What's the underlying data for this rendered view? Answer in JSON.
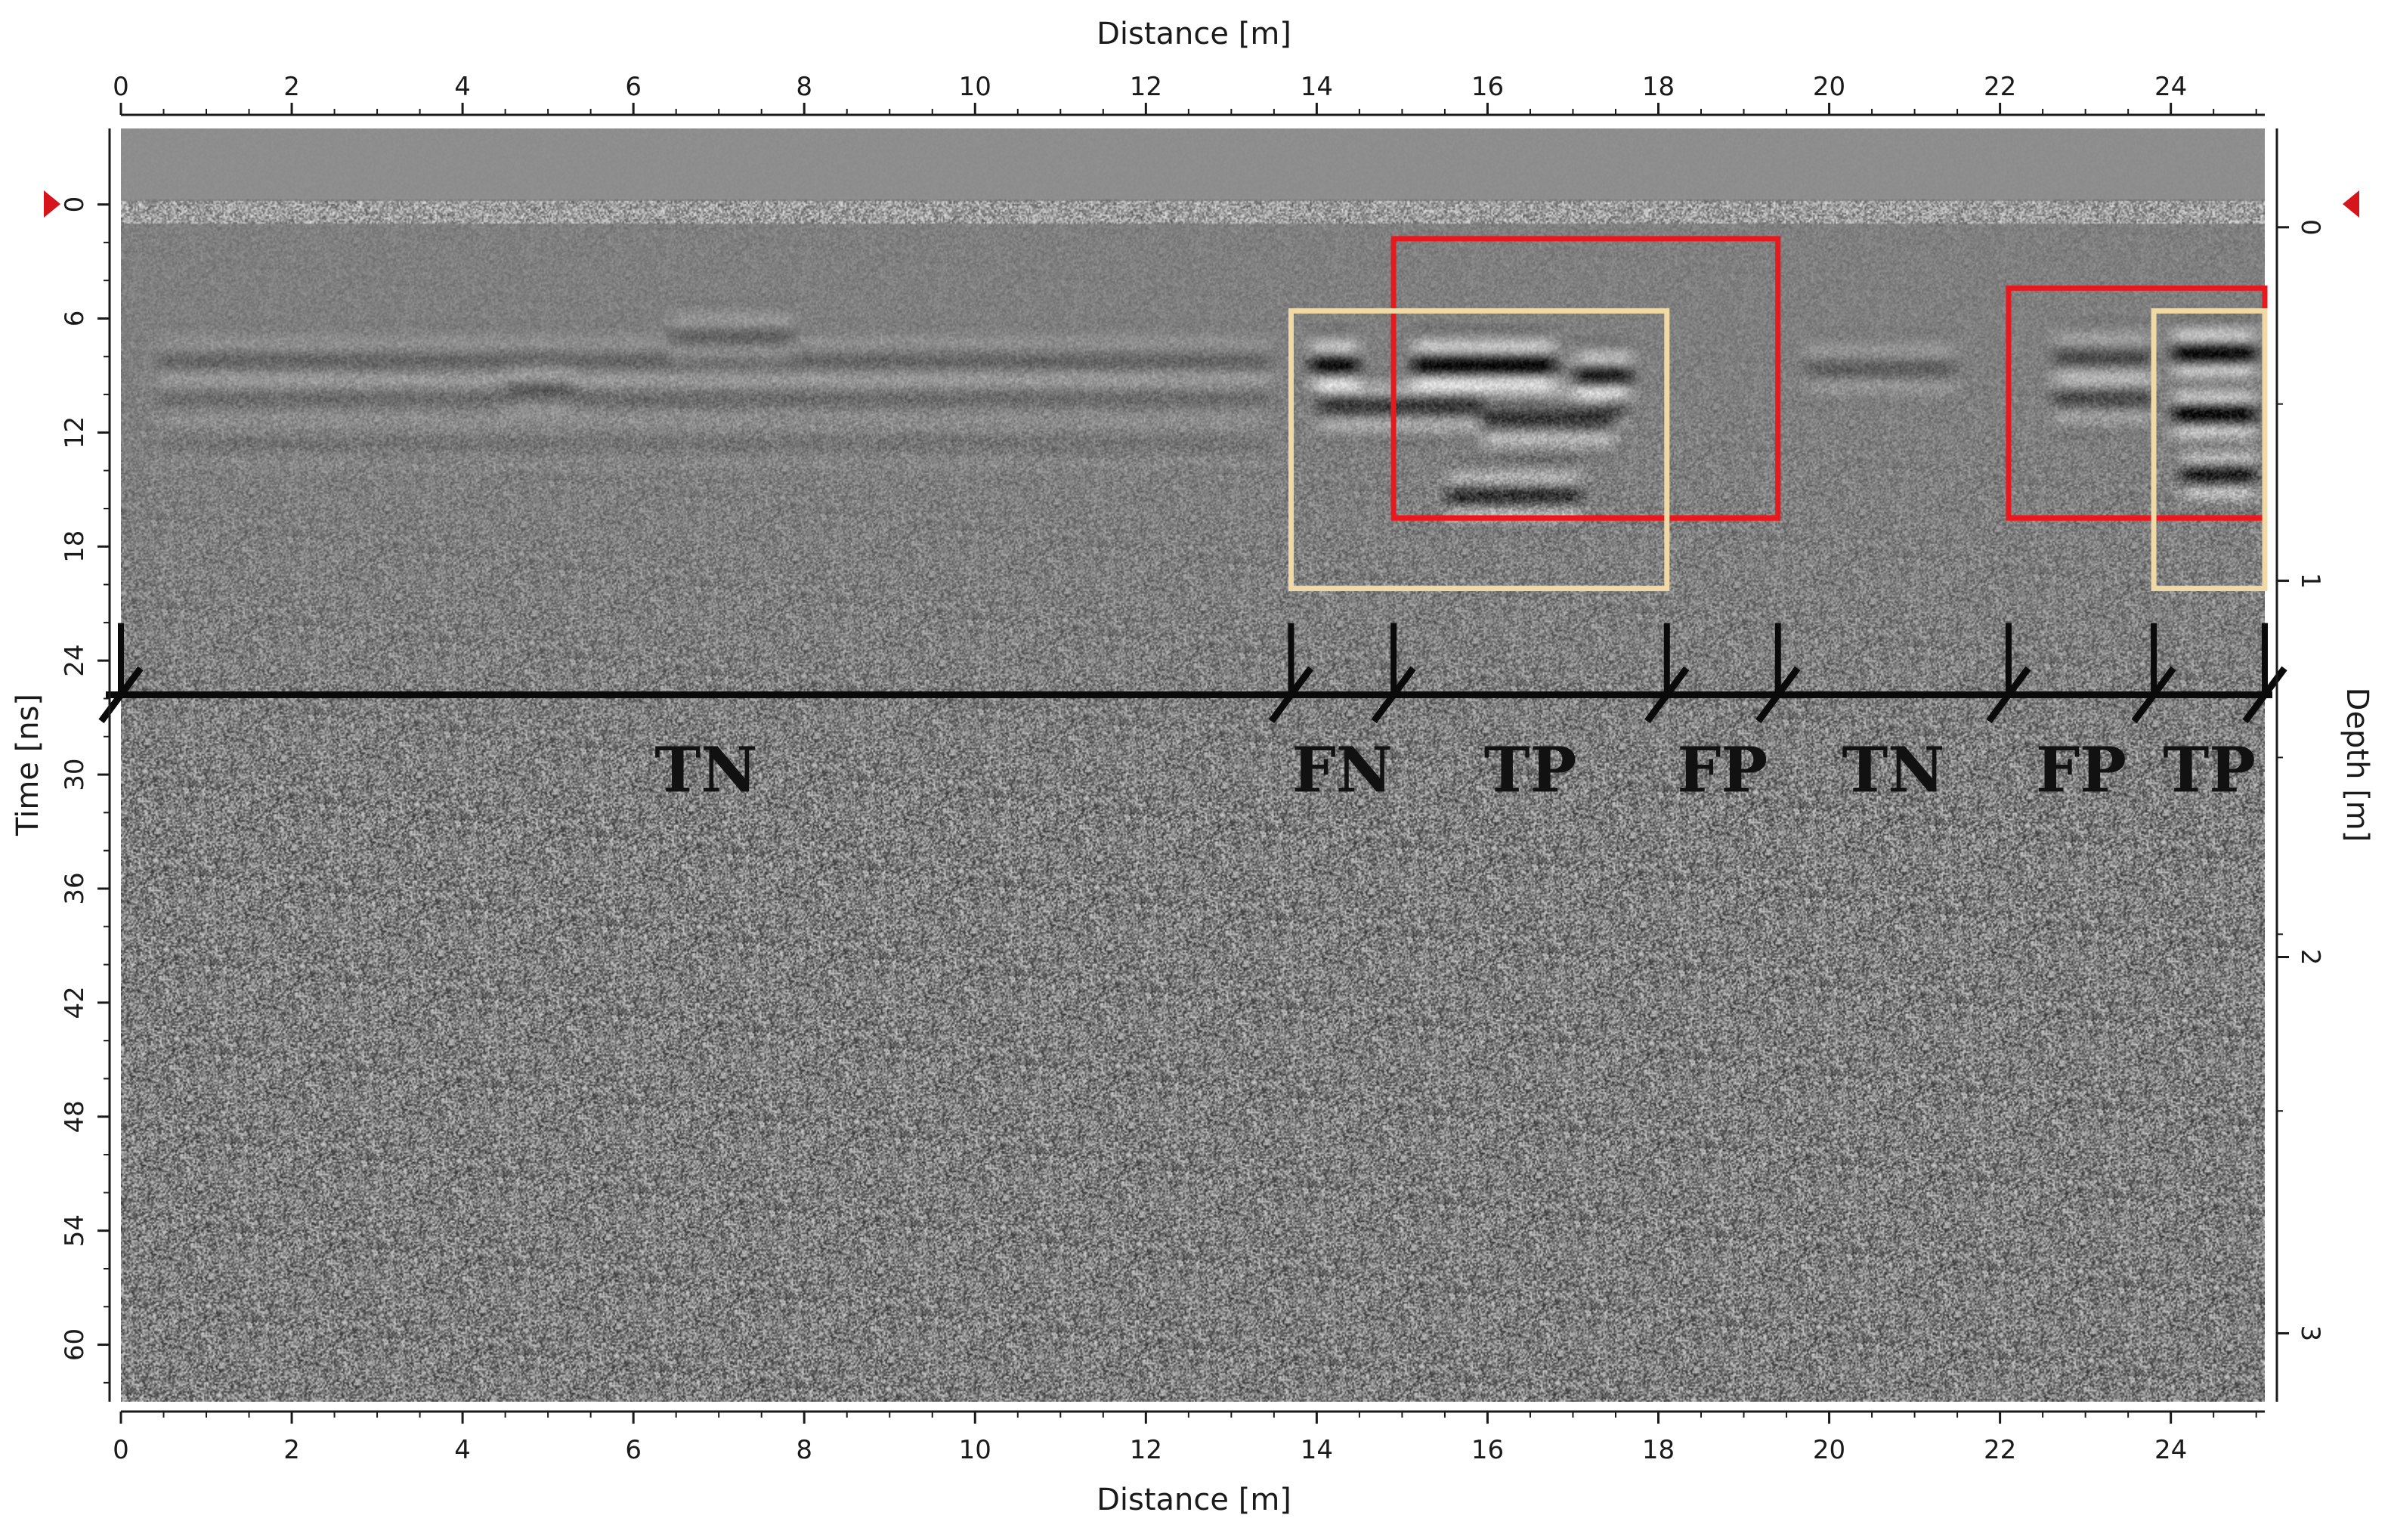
{
  "chart_data": {
    "type": "heatmap",
    "xlabel": "Distance [m]",
    "ylabel": "Time [ns]",
    "y2label": "Depth [m]",
    "x_ticks": [
      0,
      2,
      4,
      6,
      8,
      10,
      12,
      14,
      16,
      18,
      20,
      22,
      24
    ],
    "x_range": [
      0,
      25.1
    ],
    "time_ticks": [
      0,
      6,
      12,
      18,
      24,
      30,
      36,
      42,
      48,
      54,
      60
    ],
    "time_range": [
      -4,
      63
    ],
    "depth_ticks": [
      0,
      1,
      2,
      3
    ],
    "depth_tick_times": [
      1.2,
      19.8,
      39.6,
      59.4
    ],
    "surface_marker_time": 0,
    "zone_boundaries": [
      0,
      13.7,
      14.9,
      18.1,
      19.4,
      22.1,
      23.8,
      25.1
    ],
    "zone_line_time": 25.8,
    "zones": [
      {
        "label": "TN",
        "x_start": 0,
        "x_end": 13.7
      },
      {
        "label": "FN",
        "x_start": 13.7,
        "x_end": 14.9
      },
      {
        "label": "TP",
        "x_start": 14.9,
        "x_end": 18.1
      },
      {
        "label": "FP",
        "x_start": 18.1,
        "x_end": 19.4
      },
      {
        "label": "TN",
        "x_start": 19.4,
        "x_end": 22.1
      },
      {
        "label": "FP",
        "x_start": 22.1,
        "x_end": 23.8
      },
      {
        "label": "TP",
        "x_start": 23.8,
        "x_end": 25.1
      }
    ],
    "boxes": [
      {
        "kind": "predicted",
        "color": "#e8191e",
        "x0": 14.9,
        "x1": 19.4,
        "t0": 1.8,
        "t1": 16.5
      },
      {
        "kind": "predicted",
        "color": "#e8191e",
        "x0": 22.1,
        "x1": 25.1,
        "t0": 4.4,
        "t1": 16.5
      },
      {
        "kind": "ground-truth",
        "color": "#f1d9a6",
        "x0": 13.7,
        "x1": 18.1,
        "t0": 5.6,
        "t1": 20.2
      },
      {
        "kind": "ground-truth",
        "color": "#f1d9a6",
        "x0": 23.8,
        "x1": 25.1,
        "t0": 5.6,
        "t1": 20.2
      }
    ],
    "reflections": [
      {
        "x0": 0.3,
        "x1": 13.6,
        "t": 8.2,
        "strength": 0.22
      },
      {
        "x0": 0.3,
        "x1": 13.6,
        "t": 10.2,
        "strength": 0.16
      },
      {
        "x0": 0.3,
        "x1": 13.6,
        "t": 12.6,
        "strength": 0.1
      },
      {
        "x0": 6.3,
        "x1": 8.0,
        "t": 7.0,
        "strength": 0.35
      },
      {
        "x0": 4.4,
        "x1": 5.4,
        "t": 9.6,
        "strength": 0.32
      },
      {
        "x0": 13.8,
        "x1": 14.6,
        "t": 8.4,
        "strength": 0.95
      },
      {
        "x0": 15.0,
        "x1": 16.9,
        "t": 8.4,
        "strength": 1.0
      },
      {
        "x0": 16.9,
        "x1": 17.8,
        "t": 9.0,
        "strength": 0.85
      },
      {
        "x0": 13.9,
        "x1": 17.7,
        "t": 10.6,
        "strength": 0.6
      },
      {
        "x0": 15.8,
        "x1": 17.6,
        "t": 11.4,
        "strength": 0.85
      },
      {
        "x0": 15.4,
        "x1": 17.2,
        "t": 15.3,
        "strength": 0.7
      },
      {
        "x0": 19.6,
        "x1": 21.6,
        "t": 8.6,
        "strength": 0.3
      },
      {
        "x0": 22.5,
        "x1": 23.9,
        "t": 8.0,
        "strength": 0.45
      },
      {
        "x0": 22.5,
        "x1": 23.9,
        "t": 10.2,
        "strength": 0.45
      },
      {
        "x0": 23.9,
        "x1": 25.1,
        "t": 7.8,
        "strength": 1.0
      },
      {
        "x0": 23.9,
        "x1": 25.1,
        "t": 11.0,
        "strength": 1.0
      },
      {
        "x0": 24.0,
        "x1": 25.1,
        "t": 14.2,
        "strength": 0.85
      }
    ],
    "colors": {
      "background_noise": "#808080",
      "air_band": "#8e8e8e",
      "axis": "#1a1a1a",
      "zone_line": "#0a0a0a",
      "marker": "#d6141c"
    }
  }
}
